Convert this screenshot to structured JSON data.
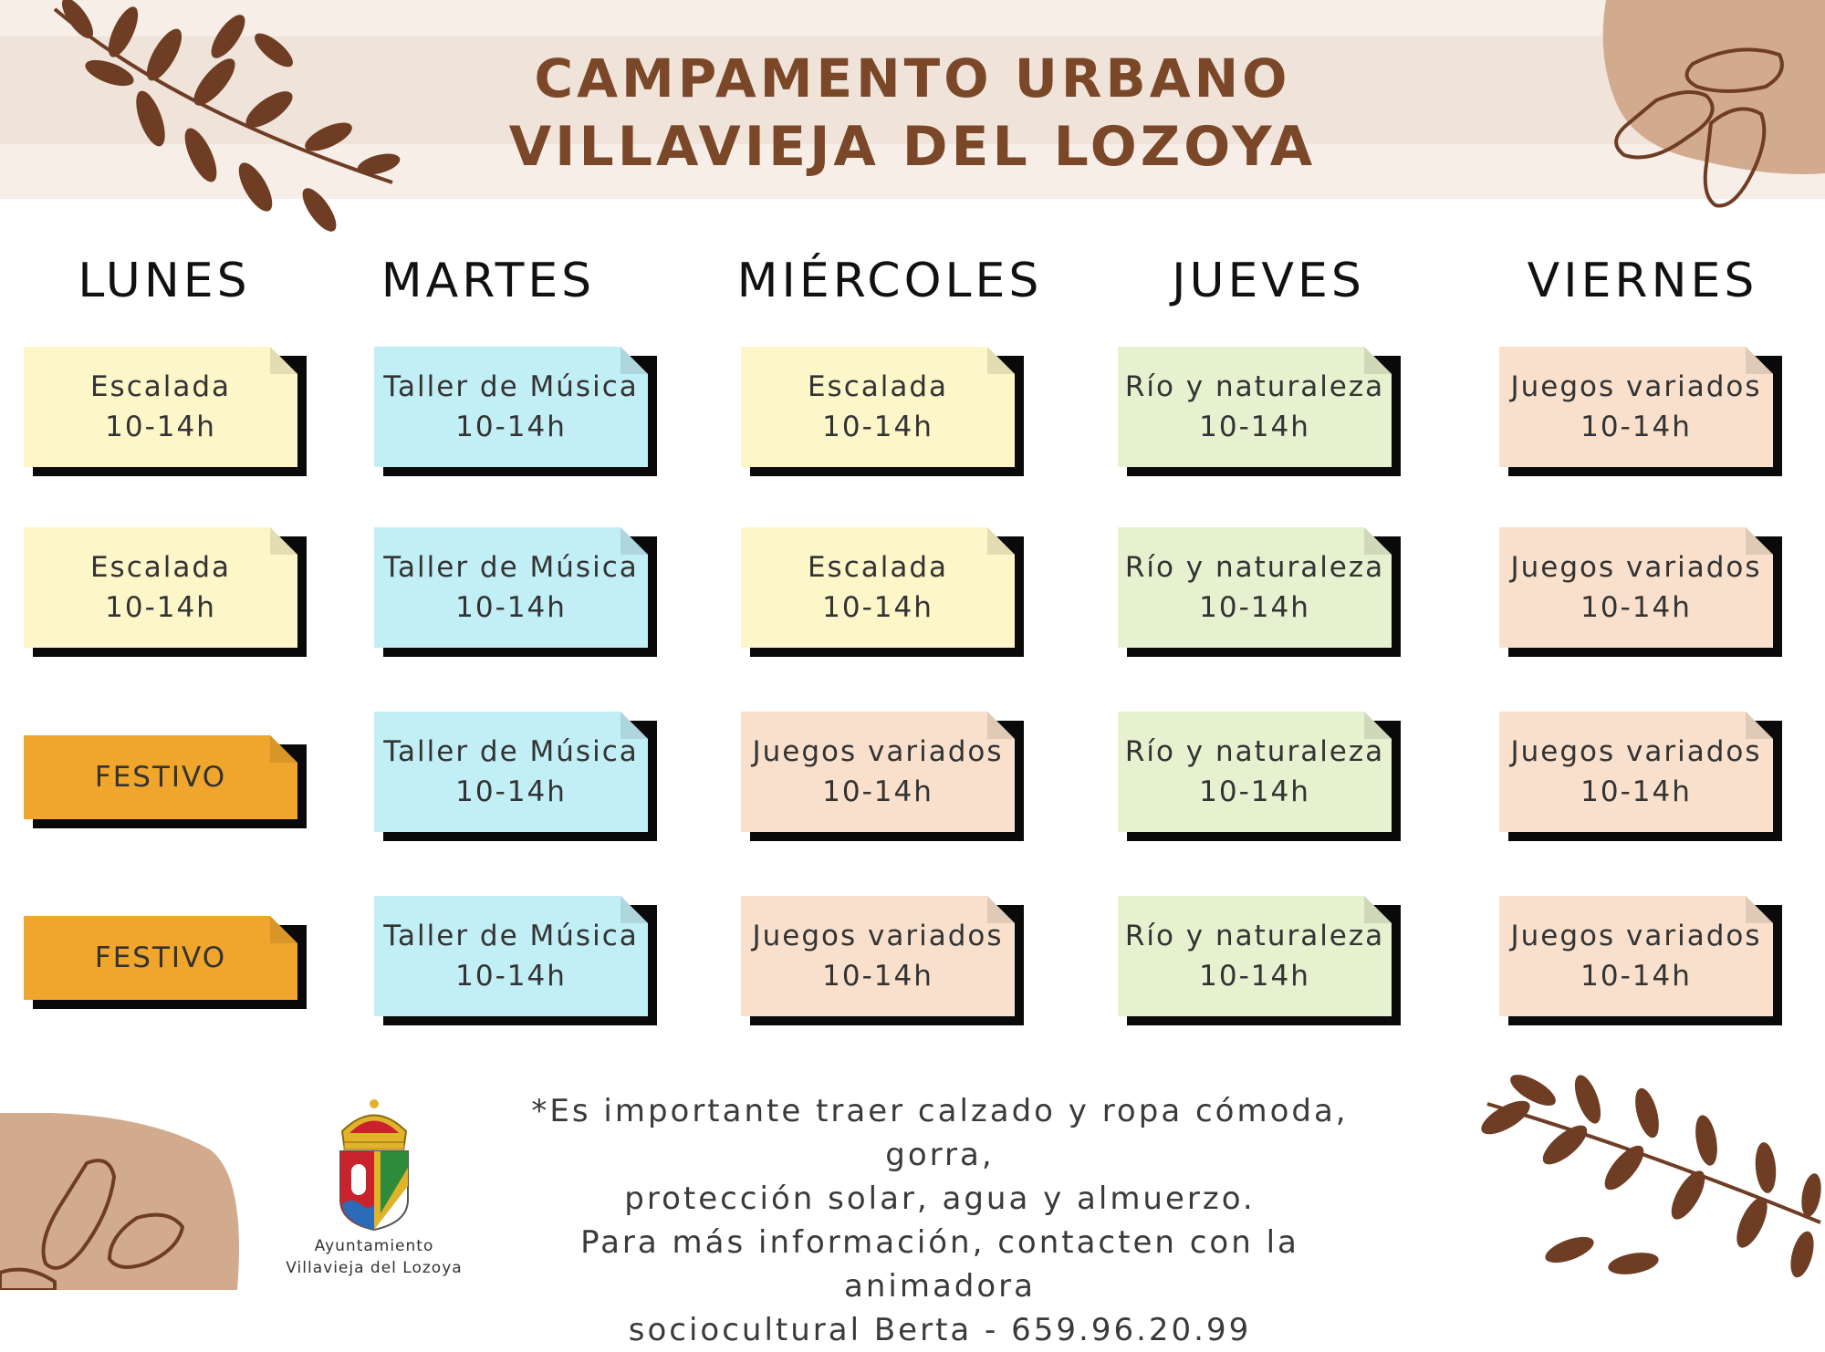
{
  "header": {
    "title_line1": "CAMPAMENTO URBANO",
    "title_line2": "VILLAVIEJA DEL LOZOYA"
  },
  "days": [
    "LUNES",
    "MARTES",
    "MIÉRCOLES",
    "JUEVES",
    "VIERNES"
  ],
  "schedule": [
    [
      {
        "activity": "Escalada",
        "time": "10-14h",
        "color": "#fdf6c8"
      },
      {
        "activity": "Escalada",
        "time": "10-14h",
        "color": "#fdf6c8"
      },
      {
        "activity": "FESTIVO",
        "time": "",
        "color": "#f0a62c"
      },
      {
        "activity": "FESTIVO",
        "time": "",
        "color": "#f0a62c"
      }
    ],
    [
      {
        "activity": "Taller de Música",
        "time": "10-14h",
        "color": "#c2eef6"
      },
      {
        "activity": "Taller de Música",
        "time": "10-14h",
        "color": "#c2eef6"
      },
      {
        "activity": "Taller de Música",
        "time": "10-14h",
        "color": "#c2eef6"
      },
      {
        "activity": "Taller de Música",
        "time": "10-14h",
        "color": "#c2eef6"
      }
    ],
    [
      {
        "activity": "Escalada",
        "time": "10-14h",
        "color": "#fdf6c8"
      },
      {
        "activity": "Escalada",
        "time": "10-14h",
        "color": "#fdf6c8"
      },
      {
        "activity": "Juegos variados",
        "time": "10-14h",
        "color": "#f8e0cc"
      },
      {
        "activity": "Juegos variados",
        "time": "10-14h",
        "color": "#f8e0cc"
      }
    ],
    [
      {
        "activity": "Río y naturaleza",
        "time": "10-14h",
        "color": "#e6f1cf"
      },
      {
        "activity": "Río y naturaleza",
        "time": "10-14h",
        "color": "#e6f1cf"
      },
      {
        "activity": "Río y naturaleza",
        "time": "10-14h",
        "color": "#e6f1cf"
      },
      {
        "activity": "Río y naturaleza",
        "time": "10-14h",
        "color": "#e6f1cf"
      }
    ],
    [
      {
        "activity": "Juegos variados",
        "time": "10-14h",
        "color": "#f8e0cc"
      },
      {
        "activity": "Juegos variados",
        "time": "10-14h",
        "color": "#f8e0cc"
      },
      {
        "activity": "Juegos variados",
        "time": "10-14h",
        "color": "#f8e0cc"
      },
      {
        "activity": "Juegos variados",
        "time": "10-14h",
        "color": "#f8e0cc"
      }
    ]
  ],
  "footer": {
    "lines": [
      "*Es importante traer calzado y ropa cómoda, gorra,",
      "protección solar, agua y almuerzo.",
      "Para más información, contacten con la animadora",
      "sociocultural Berta - 659.96.20.99"
    ]
  },
  "logo": {
    "label_line1": "Ayuntamiento",
    "label_line2": "Villavieja del Lozoya"
  },
  "colors": {
    "title": "#7a4728",
    "leaf": "#6e3d24",
    "blob": "#d2ab8e"
  }
}
